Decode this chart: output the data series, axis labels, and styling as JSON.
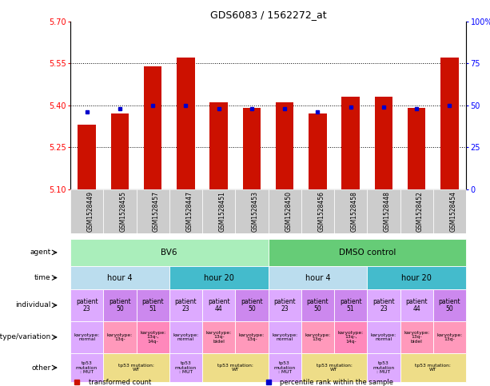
{
  "title": "GDS6083 / 1562272_at",
  "samples": [
    "GSM1528449",
    "GSM1528455",
    "GSM1528457",
    "GSM1528447",
    "GSM1528451",
    "GSM1528453",
    "GSM1528450",
    "GSM1528456",
    "GSM1528458",
    "GSM1528448",
    "GSM1528452",
    "GSM1528454"
  ],
  "bar_values": [
    5.33,
    5.37,
    5.54,
    5.57,
    5.41,
    5.39,
    5.41,
    5.37,
    5.43,
    5.43,
    5.39,
    5.57
  ],
  "percentile_values": [
    46,
    48,
    50,
    50,
    48,
    48,
    48,
    46,
    49,
    49,
    48,
    50
  ],
  "bar_bottom": 5.1,
  "ylim_left": [
    5.1,
    5.7
  ],
  "yticks_left": [
    5.1,
    5.25,
    5.4,
    5.55,
    5.7
  ],
  "yticks_right": [
    0,
    25,
    50,
    75,
    100
  ],
  "ytick_labels_right": [
    "0",
    "25",
    "50",
    "75",
    "100%"
  ],
  "hlines": [
    5.25,
    5.4,
    5.55
  ],
  "bar_color": "#cc1100",
  "percentile_color": "#0000cc",
  "agent_groups": [
    {
      "text": "BV6",
      "span": 6,
      "color": "#aaeebb"
    },
    {
      "text": "DMSO control",
      "span": 6,
      "color": "#66cc77"
    }
  ],
  "time_groups": [
    {
      "text": "hour 4",
      "span": 3,
      "color": "#bbddee"
    },
    {
      "text": "hour 20",
      "span": 3,
      "color": "#44bbcc"
    },
    {
      "text": "hour 4",
      "span": 3,
      "color": "#bbddee"
    },
    {
      "text": "hour 20",
      "span": 3,
      "color": "#44bbcc"
    }
  ],
  "individual_cells": [
    {
      "text": "patient\n23",
      "color": "#ddaaff"
    },
    {
      "text": "patient\n50",
      "color": "#cc88ee"
    },
    {
      "text": "patient\n51",
      "color": "#cc88ee"
    },
    {
      "text": "patient\n23",
      "color": "#ddaaff"
    },
    {
      "text": "patient\n44",
      "color": "#ddaaff"
    },
    {
      "text": "patient\n50",
      "color": "#cc88ee"
    },
    {
      "text": "patient\n23",
      "color": "#ddaaff"
    },
    {
      "text": "patient\n50",
      "color": "#cc88ee"
    },
    {
      "text": "patient\n51",
      "color": "#cc88ee"
    },
    {
      "text": "patient\n23",
      "color": "#ddaaff"
    },
    {
      "text": "patient\n44",
      "color": "#ddaaff"
    },
    {
      "text": "patient\n50",
      "color": "#cc88ee"
    }
  ],
  "genotype_cells": [
    {
      "text": "karyotype:\nnormal",
      "color": "#ddaaff"
    },
    {
      "text": "karyotype:\n13q-",
      "color": "#ff99bb"
    },
    {
      "text": "karyotype:\n13q-,\n14q-",
      "color": "#ff88bb"
    },
    {
      "text": "karyotype:\nnormal",
      "color": "#ddaaff"
    },
    {
      "text": "karyotype:\n13q-\nbidel",
      "color": "#ff99bb"
    },
    {
      "text": "karyotype:\n13q-",
      "color": "#ff99bb"
    },
    {
      "text": "karyotype:\nnormal",
      "color": "#ddaaff"
    },
    {
      "text": "karyotype:\n13q-",
      "color": "#ff99bb"
    },
    {
      "text": "karyotype:\n13q-,\n14q-",
      "color": "#ff88bb"
    },
    {
      "text": "karyotype:\nnormal",
      "color": "#ddaaff"
    },
    {
      "text": "karyotype:\n13q-\nbidel",
      "color": "#ff99bb"
    },
    {
      "text": "karyotype:\n13q-",
      "color": "#ff99bb"
    }
  ],
  "other_cells": [
    {
      "text": "tp53\nmutation\n: MUT",
      "color": "#ddaaff",
      "span": 1
    },
    {
      "text": "tp53 mutation:\nWT",
      "color": "#eedd88",
      "span": 2
    },
    {
      "text": "tp53\nmutation\n: MUT",
      "color": "#ddaaff",
      "span": 1
    },
    {
      "text": "tp53 mutation:\nWT",
      "color": "#eedd88",
      "span": 2
    },
    {
      "text": "tp53\nmutation\n: MUT",
      "color": "#ddaaff",
      "span": 1
    },
    {
      "text": "tp53 mutation:\nWT",
      "color": "#eedd88",
      "span": 2
    },
    {
      "text": "tp53\nmutation\n: MUT",
      "color": "#ddaaff",
      "span": 1
    },
    {
      "text": "tp53 mutation:\nWT",
      "color": "#eedd88",
      "span": 2
    }
  ],
  "row_labels": [
    "agent",
    "time",
    "individual",
    "genotype/variation",
    "other"
  ],
  "legend_items": [
    {
      "color": "#cc1100",
      "label": "transformed count"
    },
    {
      "color": "#0000cc",
      "label": "percentile rank within the sample"
    }
  ],
  "xtick_bg": "#cccccc"
}
